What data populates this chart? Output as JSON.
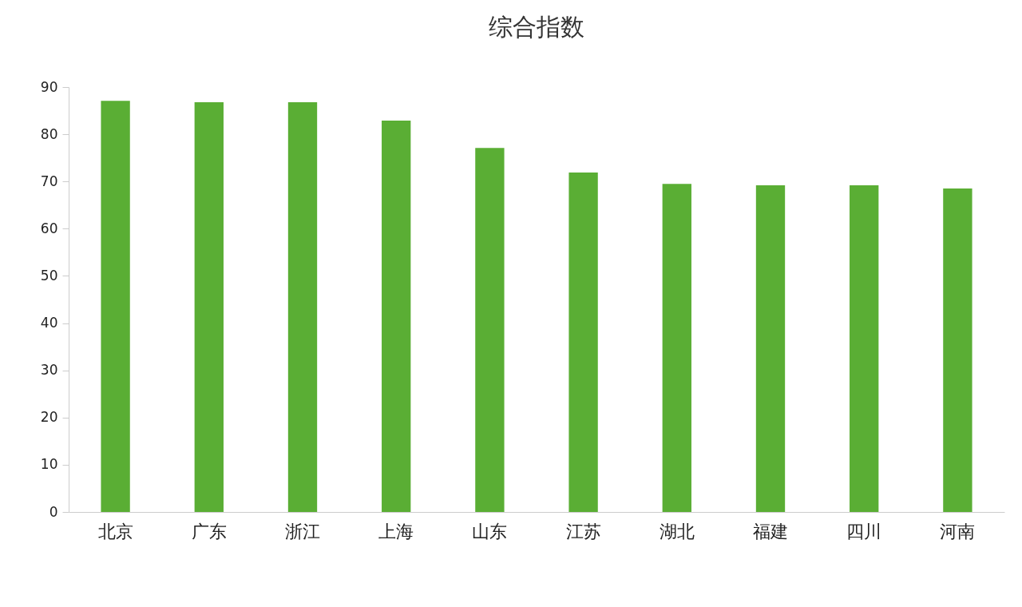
{
  "chart_data": {
    "type": "bar",
    "title": "综合指数",
    "categories": [
      "北京",
      "广东",
      "浙江",
      "上海",
      "山东",
      "江苏",
      "湖北",
      "福建",
      "四川",
      "河南"
    ],
    "values": [
      87.1,
      86.8,
      86.8,
      82.9,
      77.1,
      71.9,
      69.5,
      69.2,
      69.2,
      68.5
    ],
    "color": "#5aae34",
    "ylim": [
      0,
      90
    ],
    "yticks": [
      0,
      10,
      20,
      30,
      40,
      50,
      60,
      70,
      80,
      90
    ],
    "grid": false
  }
}
